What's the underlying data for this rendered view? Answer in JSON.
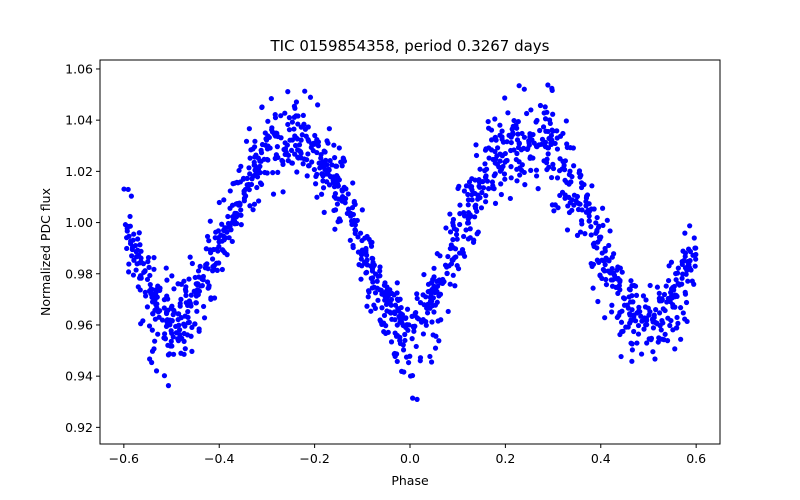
{
  "chart_data": {
    "type": "scatter",
    "title": "TIC 0159854358, period 0.3267 days",
    "xlabel": "Phase",
    "ylabel": "Normalized PDC flux",
    "xlim": [
      -0.65,
      0.65
    ],
    "ylim": [
      0.9135,
      1.0635
    ],
    "xticks": [
      -0.6,
      -0.4,
      -0.2,
      0.0,
      0.2,
      0.4,
      0.6
    ],
    "xtick_labels": [
      "−0.6",
      "−0.4",
      "−0.2",
      "0.0",
      "0.2",
      "0.4",
      "0.6"
    ],
    "yticks": [
      0.92,
      0.94,
      0.96,
      0.98,
      1.0,
      1.02,
      1.04,
      1.06
    ],
    "ytick_labels": [
      "0.92",
      "0.94",
      "0.96",
      "0.98",
      "1.00",
      "1.02",
      "1.04",
      "1.06"
    ],
    "grid": false,
    "legend": "none",
    "marker_color": "#0000ff",
    "series": [
      {
        "x": [
          -0.6,
          -0.575,
          -0.55,
          -0.525,
          -0.5,
          -0.475,
          -0.45,
          -0.425,
          -0.4,
          -0.375,
          -0.35,
          -0.325,
          -0.3,
          -0.275,
          -0.25,
          -0.225,
          -0.2,
          -0.175,
          -0.15,
          -0.125,
          -0.1,
          -0.075,
          -0.05,
          -0.025,
          0.0,
          0.025,
          0.05,
          0.075,
          0.1,
          0.125,
          0.15,
          0.175,
          0.2,
          0.225,
          0.25,
          0.275,
          0.3,
          0.325,
          0.35,
          0.375,
          0.4,
          0.425,
          0.45,
          0.475,
          0.5,
          0.525,
          0.55,
          0.575,
          0.6
        ],
        "y": [
          1.0,
          0.99,
          0.975,
          0.965,
          0.962,
          0.963,
          0.97,
          0.98,
          0.992,
          1.003,
          1.012,
          1.02,
          1.026,
          1.03,
          1.031,
          1.03,
          1.027,
          1.021,
          1.013,
          1.003,
          0.991,
          0.979,
          0.968,
          0.96,
          0.957,
          0.961,
          0.97,
          0.982,
          0.995,
          1.006,
          1.016,
          1.023,
          1.028,
          1.031,
          1.033,
          1.032,
          1.029,
          1.023,
          1.014,
          1.003,
          0.991,
          0.979,
          0.969,
          0.962,
          0.96,
          0.962,
          0.968,
          0.978,
          0.99
        ],
        "y_low": [
          0.98,
          0.966,
          0.948,
          0.94,
          0.935,
          0.938,
          0.95,
          0.962,
          0.976,
          0.99,
          1.0,
          1.006,
          1.01,
          1.012,
          1.012,
          1.011,
          1.008,
          1.003,
          0.995,
          0.985,
          0.972,
          0.96,
          0.948,
          0.935,
          0.925,
          0.935,
          0.948,
          0.962,
          0.976,
          0.989,
          0.999,
          1.006,
          1.009,
          1.01,
          1.01,
          1.008,
          1.005,
          0.999,
          0.99,
          0.979,
          0.966,
          0.954,
          0.945,
          0.938,
          0.936,
          0.939,
          0.946,
          0.958,
          0.972
        ],
        "y_high": [
          1.018,
          1.008,
          0.995,
          0.985,
          0.98,
          0.982,
          0.99,
          0.998,
          1.008,
          1.02,
          1.032,
          1.041,
          1.048,
          1.053,
          1.055,
          1.052,
          1.048,
          1.04,
          1.03,
          1.018,
          1.005,
          0.993,
          0.983,
          0.976,
          0.972,
          0.978,
          0.988,
          0.999,
          1.013,
          1.025,
          1.035,
          1.043,
          1.049,
          1.053,
          1.056,
          1.056,
          1.052,
          1.045,
          1.035,
          1.022,
          1.008,
          0.995,
          0.985,
          0.978,
          0.975,
          0.978,
          0.985,
          0.995,
          1.013
        ]
      }
    ]
  }
}
